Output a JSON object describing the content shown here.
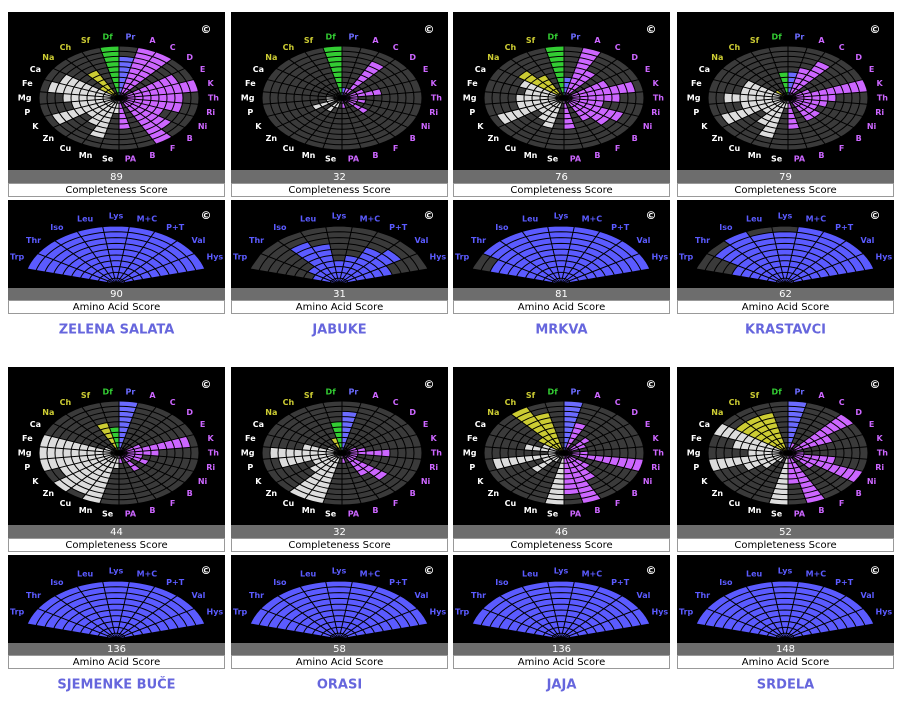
{
  "copyright": "©",
  "completeness_label": "Completeness Score",
  "amino_label": "Amino Acid Score",
  "rlim": [
    0,
    10
  ],
  "nutrient_labels": [
    "Pr",
    "A",
    "C",
    "D",
    "E",
    "K",
    "Th",
    "Ri",
    "Ni",
    "B",
    "F",
    "B",
    "PA",
    "Se",
    "Mn",
    "Cu",
    "Zn",
    "K",
    "P",
    "Mg",
    "Fe",
    "Ca",
    "Na",
    "Ch",
    "Sf",
    "Df"
  ],
  "nutrient_colors": [
    "#6b6bff",
    "#cc66ff",
    "#cc66ff",
    "#cc66ff",
    "#cc66ff",
    "#cc66ff",
    "#cc66ff",
    "#cc66ff",
    "#cc66ff",
    "#cc66ff",
    "#cc66ff",
    "#cc66ff",
    "#cc66ff",
    "#dddddd",
    "#dddddd",
    "#dddddd",
    "#dddddd",
    "#dddddd",
    "#dddddd",
    "#dddddd",
    "#dddddd",
    "#dddddd",
    "#cccc33",
    "#cccc33",
    "#cccc33",
    "#33cc33"
  ],
  "amino_labels": [
    "Trp",
    "Thr",
    "Iso",
    "Leu",
    "Lys",
    "M+C",
    "P+T",
    "Val",
    "Hys"
  ],
  "amino_color": "#5b5bff",
  "foods": [
    {
      "name": "ZELENA SALATA",
      "completeness": 89,
      "amino_score": 90,
      "nutrients": [
        8,
        10,
        10,
        0,
        8,
        10,
        8,
        8,
        6,
        8,
        10,
        0,
        6,
        3,
        8,
        6,
        5,
        9,
        6,
        7,
        9,
        8,
        3,
        6,
        0,
        10
      ],
      "amino": [
        10,
        10,
        10,
        10,
        10,
        10,
        10,
        10,
        10
      ]
    },
    {
      "name": "JABUKE",
      "completeness": 32,
      "amino_score": 31,
      "nutrients": [
        2,
        2,
        8,
        0,
        3,
        5,
        2,
        3,
        2,
        4,
        1,
        0,
        2,
        0,
        2,
        3,
        0,
        4,
        2,
        2,
        1,
        1,
        0,
        0,
        0,
        10
      ],
      "amino": [
        3,
        4,
        8,
        7,
        4,
        5,
        7,
        8,
        6
      ]
    },
    {
      "name": "MRKVA",
      "completeness": 76,
      "amino_score": 81,
      "nutrients": [
        4,
        10,
        6,
        0,
        6,
        9,
        7,
        5,
        8,
        7,
        5,
        0,
        6,
        1,
        6,
        5,
        4,
        9,
        6,
        6,
        5,
        6,
        7,
        5,
        0,
        10
      ],
      "amino": [
        8,
        10,
        10,
        10,
        10,
        10,
        10,
        10,
        10
      ]
    },
    {
      "name": "KRASTAVCI",
      "completeness": 79,
      "amino_score": 62,
      "nutrients": [
        5,
        6,
        8,
        0,
        3,
        10,
        6,
        5,
        4,
        5,
        5,
        0,
        6,
        2,
        8,
        6,
        4,
        9,
        6,
        8,
        6,
        6,
        2,
        0,
        0,
        5
      ],
      "amino": [
        6,
        9,
        10,
        9,
        9,
        10,
        10,
        10,
        10
      ]
    },
    {
      "name": "SJEMENKE BUČE",
      "completeness": 44,
      "amino_score": 136,
      "nutrients": [
        10,
        1,
        0,
        0,
        3,
        9,
        5,
        3,
        4,
        2,
        4,
        0,
        2,
        3,
        10,
        9,
        10,
        8,
        10,
        10,
        10,
        2,
        0,
        0,
        6,
        5
      ],
      "amino": [
        10,
        10,
        10,
        10,
        10,
        10,
        10,
        10,
        10
      ]
    },
    {
      "name": "ORASI",
      "completeness": 32,
      "amino_score": 58,
      "nutrients": [
        8,
        0,
        0,
        0,
        2,
        3,
        6,
        2,
        2,
        7,
        5,
        0,
        2,
        1,
        10,
        10,
        5,
        4,
        8,
        9,
        5,
        2,
        0,
        0,
        3,
        6
      ],
      "amino": [
        10,
        10,
        10,
        10,
        10,
        10,
        10,
        10,
        10
      ]
    },
    {
      "name": "JAJA",
      "completeness": 46,
      "amino_score": 136,
      "nutrients": [
        10,
        6,
        0,
        4,
        3,
        1,
        3,
        10,
        0,
        4,
        6,
        10,
        8,
        10,
        1,
        2,
        5,
        3,
        9,
        2,
        5,
        3,
        4,
        10,
        8,
        0
      ],
      "amino": [
        10,
        10,
        10,
        10,
        10,
        10,
        10,
        10,
        10
      ]
    },
    {
      "name": "SRDELA",
      "completeness": 52,
      "amino_score": 148,
      "nutrients": [
        10,
        2,
        0,
        10,
        6,
        1,
        2,
        6,
        10,
        4,
        1,
        10,
        6,
        10,
        1,
        2,
        4,
        6,
        10,
        5,
        7,
        10,
        8,
        8,
        8,
        0
      ],
      "amino": [
        10,
        10,
        10,
        10,
        10,
        10,
        10,
        10,
        10
      ]
    }
  ]
}
